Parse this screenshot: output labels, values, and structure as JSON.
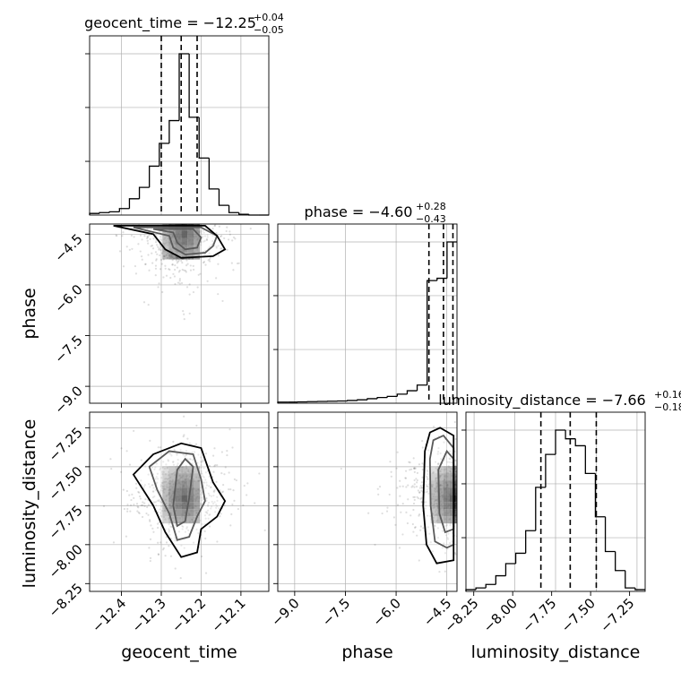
{
  "chart_data": {
    "type": "corner",
    "parameters": [
      "geocent_time",
      "phase",
      "luminosity_distance"
    ],
    "grid": true,
    "diagonal": [
      {
        "name": "geocent_time",
        "title_main": "geocent_time = −12.25",
        "title_sup": "+0.04",
        "title_sub": "−0.05",
        "xlim": [
          -12.48,
          -12.03
        ],
        "bin_edges": [
          -12.48,
          -12.455,
          -12.43,
          -12.405,
          -12.38,
          -12.355,
          -12.33,
          -12.305,
          -12.28,
          -12.255,
          -12.23,
          -12.205,
          -12.18,
          -12.155,
          -12.13,
          -12.105,
          -12.08,
          -12.055,
          -12.03
        ],
        "counts": [
          0.01,
          0.015,
          0.02,
          0.04,
          0.1,
          0.17,
          0.3,
          0.44,
          0.58,
          0.99,
          0.6,
          0.35,
          0.16,
          0.06,
          0.015,
          0.005,
          0.0,
          0.0
        ],
        "quantiles": [
          -12.3,
          -12.25,
          -12.21
        ]
      },
      {
        "name": "phase",
        "title_main": "phase = −4.60",
        "title_sup": "+0.28",
        "title_sub": "−0.43",
        "xlim": [
          -9.5,
          -4.2
        ],
        "bin_edges": [
          -9.5,
          -9.2056,
          -8.9111,
          -8.6167,
          -8.3222,
          -8.0278,
          -7.7333,
          -7.4389,
          -7.1444,
          -6.85,
          -6.5556,
          -6.2611,
          -5.9667,
          -5.6722,
          -5.3778,
          -5.0833,
          -4.7889,
          -4.4944,
          -4.2
        ],
        "counts": [
          0.005,
          0.005,
          0.006,
          0.007,
          0.008,
          0.009,
          0.01,
          0.012,
          0.015,
          0.02,
          0.025,
          0.03,
          0.04,
          0.055,
          0.08,
          0.54,
          0.55,
          0.71
        ],
        "quantiles": [
          -5.03,
          -4.6,
          -4.32
        ]
      },
      {
        "name": "luminosity_distance",
        "title_main": "luminosity_distance = −7.66",
        "title_sup": "+0.16",
        "title_sub": "−0.18",
        "xlim": [
          -8.3,
          -7.2
        ],
        "bin_edges": [
          -8.3,
          -8.2389,
          -8.1778,
          -8.1167,
          -8.0556,
          -7.9944,
          -7.9333,
          -7.8722,
          -7.8111,
          -7.75,
          -7.6889,
          -7.6278,
          -7.5667,
          -7.5056,
          -7.4444,
          -7.3833,
          -7.3222,
          -7.2611,
          -7.2
        ],
        "counts": [
          0.01,
          0.02,
          0.04,
          0.09,
          0.16,
          0.22,
          0.35,
          0.6,
          0.79,
          0.93,
          0.88,
          0.84,
          0.68,
          0.43,
          0.23,
          0.12,
          0.02,
          0.01
        ],
        "quantiles": [
          -7.84,
          -7.66,
          -7.5
        ]
      }
    ],
    "axes": {
      "geocent_time": {
        "lim": [
          -12.48,
          -12.03
        ],
        "ticks": [
          -12.4,
          -12.3,
          -12.2,
          -12.1
        ],
        "tick_labels": [
          "−12.4",
          "−12.3",
          "−12.2",
          "−12.1"
        ]
      },
      "phase": {
        "lim": [
          -9.5,
          -4.2
        ],
        "ticks": [
          -9.0,
          -7.5,
          -6.0,
          -4.5
        ],
        "tick_labels": [
          "−9.0",
          "−7.5",
          "−6.0",
          "−4.5"
        ]
      },
      "luminosity_distance": {
        "lim": [
          -8.3,
          -7.15
        ],
        "ticks": [
          -8.25,
          -8.0,
          -7.75,
          -7.5,
          -7.25
        ],
        "tick_labels": [
          "−8.25",
          "−8.00",
          "−7.75",
          "−7.50",
          "−7.25"
        ]
      }
    },
    "xlabels": [
      "geocent_time",
      "phase",
      "luminosity_distance"
    ],
    "ylabels": [
      "phase",
      "luminosity_distance"
    ],
    "pairs": [
      {
        "x": "geocent_time",
        "y": "phase",
        "density_peak": [
          -12.25,
          -4.4
        ],
        "contours": [
          [
            [
              -12.32,
              -4.35
            ],
            [
              -12.27,
              -4.45
            ],
            [
              -12.26,
              -4.75
            ],
            [
              -12.24,
              -4.95
            ],
            [
              -12.21,
              -4.9
            ],
            [
              -12.2,
              -4.6
            ],
            [
              -12.22,
              -4.35
            ]
          ],
          [
            [
              -12.37,
              -4.3
            ],
            [
              -12.28,
              -4.55
            ],
            [
              -12.27,
              -4.9
            ],
            [
              -12.24,
              -5.1
            ],
            [
              -12.19,
              -5.05
            ],
            [
              -12.17,
              -4.85
            ],
            [
              -12.16,
              -4.55
            ],
            [
              -12.2,
              -4.3
            ]
          ],
          [
            [
              -12.42,
              -4.25
            ],
            [
              -12.32,
              -4.5
            ],
            [
              -12.29,
              -4.95
            ],
            [
              -12.25,
              -5.2
            ],
            [
              -12.17,
              -5.15
            ],
            [
              -12.14,
              -4.95
            ],
            [
              -12.16,
              -4.55
            ],
            [
              -12.19,
              -4.25
            ]
          ]
        ]
      },
      {
        "x": "geocent_time",
        "y": "luminosity_distance",
        "density_peak": [
          -12.25,
          -7.68
        ],
        "contours": [
          [
            [
              -12.26,
              -7.52
            ],
            [
              -12.27,
              -7.75
            ],
            [
              -12.26,
              -7.88
            ],
            [
              -12.24,
              -7.85
            ],
            [
              -12.23,
              -7.7
            ],
            [
              -12.22,
              -7.5
            ],
            [
              -12.24,
              -7.45
            ]
          ],
          [
            [
              -12.33,
              -7.5
            ],
            [
              -12.31,
              -7.65
            ],
            [
              -12.28,
              -7.8
            ],
            [
              -12.26,
              -7.97
            ],
            [
              -12.23,
              -7.95
            ],
            [
              -12.21,
              -7.82
            ],
            [
              -12.19,
              -7.72
            ],
            [
              -12.2,
              -7.58
            ],
            [
              -12.22,
              -7.42
            ],
            [
              -12.28,
              -7.4
            ]
          ],
          [
            [
              -12.37,
              -7.55
            ],
            [
              -12.32,
              -7.75
            ],
            [
              -12.29,
              -7.92
            ],
            [
              -12.25,
              -8.08
            ],
            [
              -12.21,
              -8.05
            ],
            [
              -12.2,
              -7.9
            ],
            [
              -12.16,
              -7.82
            ],
            [
              -12.14,
              -7.72
            ],
            [
              -12.17,
              -7.6
            ],
            [
              -12.2,
              -7.38
            ],
            [
              -12.25,
              -7.35
            ],
            [
              -12.32,
              -7.42
            ]
          ]
        ]
      },
      {
        "x": "phase",
        "y": "luminosity_distance",
        "density_peak": [
          -4.42,
          -7.68
        ],
        "contours": [
          [
            [
              -4.75,
              -7.52
            ],
            [
              -4.72,
              -7.8
            ],
            [
              -4.55,
              -7.92
            ],
            [
              -4.3,
              -7.9
            ],
            [
              -4.3,
              -7.45
            ],
            [
              -4.5,
              -7.4
            ]
          ],
          [
            [
              -5.0,
              -7.45
            ],
            [
              -4.98,
              -7.75
            ],
            [
              -4.85,
              -7.98
            ],
            [
              -4.5,
              -8.02
            ],
            [
              -4.3,
              -8.0
            ],
            [
              -4.3,
              -7.38
            ],
            [
              -4.6,
              -7.3
            ],
            [
              -4.9,
              -7.33
            ]
          ],
          [
            [
              -5.15,
              -7.4
            ],
            [
              -5.2,
              -7.75
            ],
            [
              -5.1,
              -8.0
            ],
            [
              -4.8,
              -8.12
            ],
            [
              -4.3,
              -8.1
            ],
            [
              -4.3,
              -7.3
            ],
            [
              -4.7,
              -7.25
            ],
            [
              -5.0,
              -7.28
            ]
          ]
        ]
      }
    ]
  }
}
